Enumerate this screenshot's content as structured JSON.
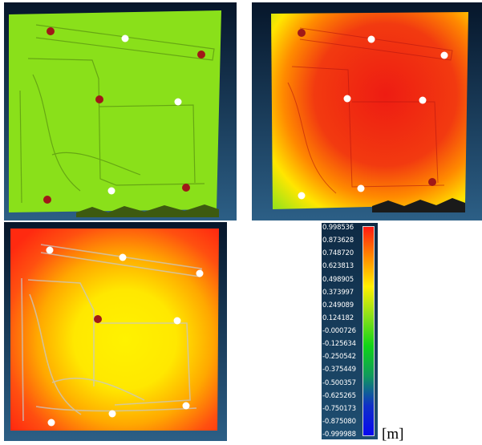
{
  "colors": {
    "background": "#ffffff",
    "scene_background_top": "#06162a",
    "scene_background_bottom": "#2c5f86",
    "panel_a_map": "#8ae01a",
    "panel_b_map_center": "#ee1c12",
    "panel_b_map_edge": "#ffe600",
    "panel_c_map_center": "#fff200",
    "panel_c_map_edge": "#ff2a10",
    "marker_red": "#a01818",
    "marker_white": "#ffffff"
  },
  "panels": [
    {
      "id": "a",
      "markers": {
        "red": 5,
        "white": 3
      }
    },
    {
      "id": "b",
      "markers": {
        "red": 2,
        "white": 6
      }
    },
    {
      "id": "c",
      "markers": {
        "red": 1,
        "white": 7
      }
    }
  ],
  "colorbar": {
    "ticks": [
      "0.998536",
      "0.873628",
      "0.748720",
      "0.623813",
      "0.498905",
      "0.373997",
      "0.249089",
      "0.124182",
      "-0.000726",
      "-0.125634",
      "-0.250542",
      "-0.375449",
      "-0.500357",
      "-0.625265",
      "-0.750173",
      "-0.875080",
      "-0.999988"
    ],
    "gradient_stops": [
      "#ff1a12",
      "#ff8a00",
      "#fff000",
      "#8ae01a",
      "#10d418",
      "#109a5c",
      "#1030c8",
      "#0808f0"
    ],
    "unit": "[m]"
  }
}
